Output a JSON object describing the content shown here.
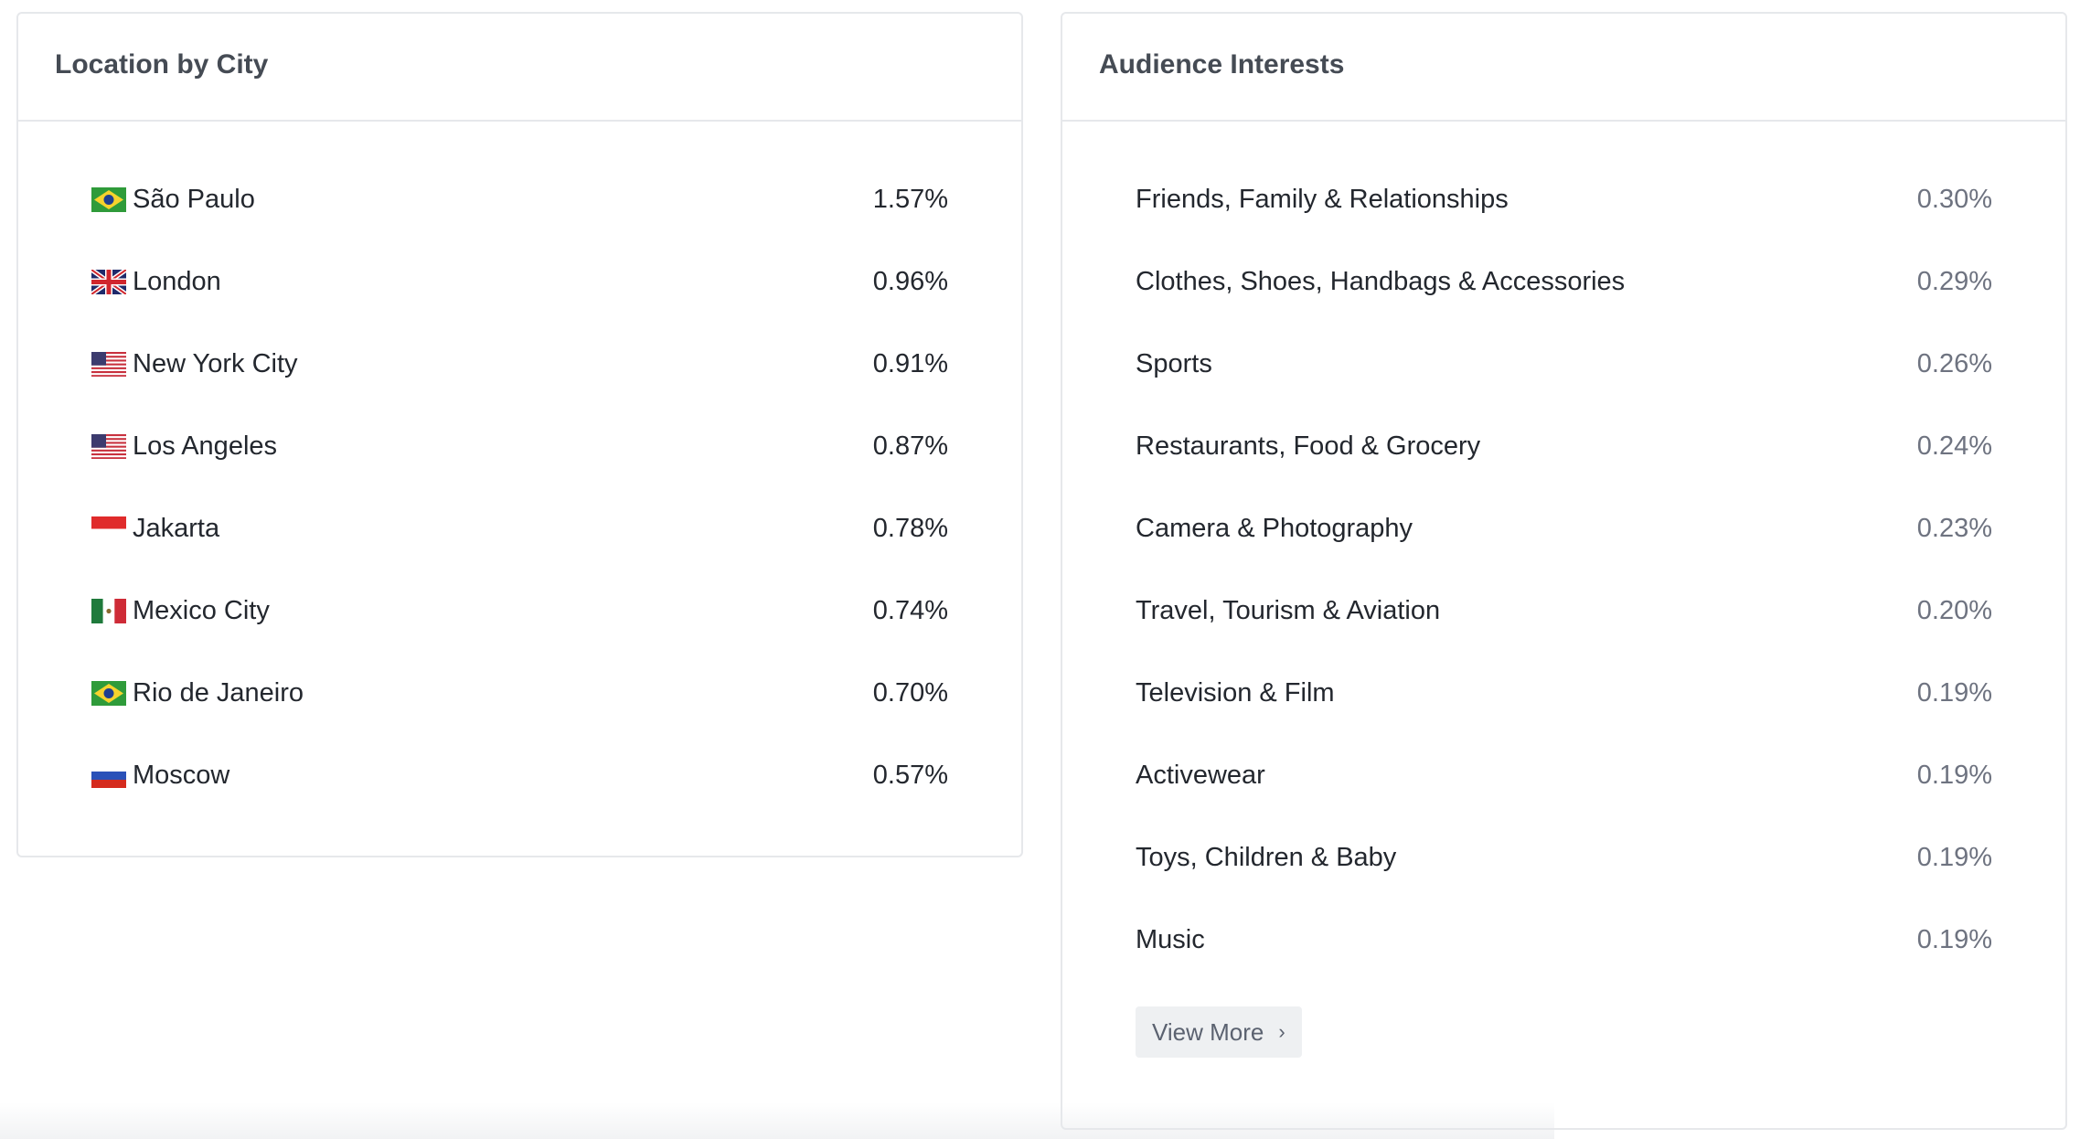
{
  "location": {
    "title": "Location by City",
    "items": [
      {
        "flag": "brazil-flag-icon",
        "city": "São Paulo",
        "value": "1.57%"
      },
      {
        "flag": "uk-flag-icon",
        "city": "London",
        "value": "0.96%"
      },
      {
        "flag": "usa-flag-icon",
        "city": "New York City",
        "value": "0.91%"
      },
      {
        "flag": "usa-flag-icon",
        "city": "Los Angeles",
        "value": "0.87%"
      },
      {
        "flag": "indonesia-flag-icon",
        "city": "Jakarta",
        "value": "0.78%"
      },
      {
        "flag": "mexico-flag-icon",
        "city": "Mexico City",
        "value": "0.74%"
      },
      {
        "flag": "brazil-flag-icon",
        "city": "Rio de Janeiro",
        "value": "0.70%"
      },
      {
        "flag": "russia-flag-icon",
        "city": "Moscow",
        "value": "0.57%"
      }
    ]
  },
  "interests": {
    "title": "Audience Interests",
    "items": [
      {
        "label": "Friends, Family & Relationships",
        "value": "0.30%"
      },
      {
        "label": "Clothes, Shoes, Handbags & Accessories",
        "value": "0.29%"
      },
      {
        "label": "Sports",
        "value": "0.26%"
      },
      {
        "label": "Restaurants, Food & Grocery",
        "value": "0.24%"
      },
      {
        "label": "Camera & Photography",
        "value": "0.23%"
      },
      {
        "label": "Travel, Tourism & Aviation",
        "value": "0.20%"
      },
      {
        "label": "Television & Film",
        "value": "0.19%"
      },
      {
        "label": "Activewear",
        "value": "0.19%"
      },
      {
        "label": "Toys, Children & Baby",
        "value": "0.19%"
      },
      {
        "label": "Music",
        "value": "0.19%"
      }
    ],
    "view_more_label": "View More",
    "view_more_icon": "chevron-right-icon"
  },
  "colors": {
    "card_border": "#e6e8eb",
    "title_text": "#454b54",
    "body_text": "#23272e",
    "muted_value": "#6e7380",
    "button_bg": "#eef0f2"
  }
}
